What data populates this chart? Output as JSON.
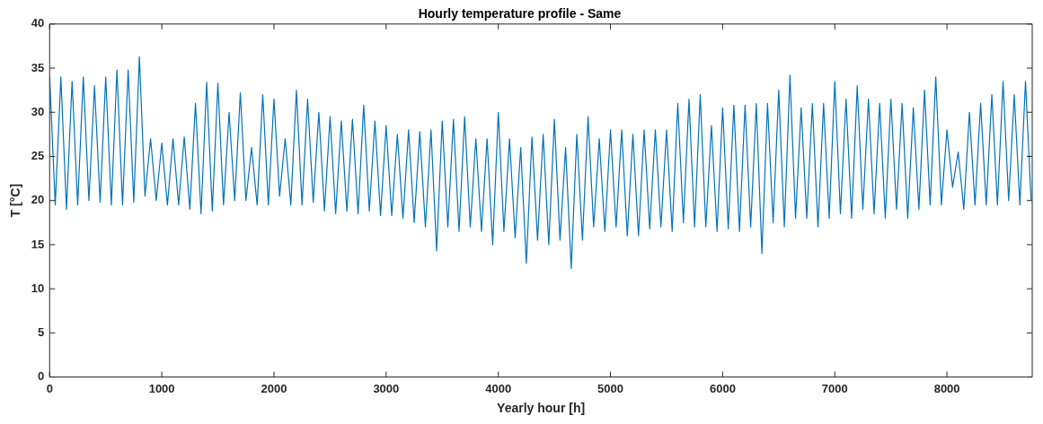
{
  "chart_data": {
    "type": "line",
    "title": "Hourly temperature profile - Same",
    "xlabel": "Yearly hour [h]",
    "ylabel": "T [°C]",
    "x": [
      0,
      50,
      100,
      150,
      200,
      250,
      300,
      350,
      400,
      450,
      500,
      550,
      600,
      650,
      700,
      750,
      800,
      850,
      900,
      950,
      1000,
      1050,
      1100,
      1150,
      1200,
      1250,
      1300,
      1350,
      1400,
      1450,
      1500,
      1550,
      1600,
      1650,
      1700,
      1750,
      1800,
      1850,
      1900,
      1950,
      2000,
      2050,
      2100,
      2150,
      2200,
      2250,
      2300,
      2350,
      2400,
      2450,
      2500,
      2550,
      2600,
      2650,
      2700,
      2750,
      2800,
      2850,
      2900,
      2950,
      3000,
      3050,
      3100,
      3150,
      3200,
      3250,
      3300,
      3350,
      3400,
      3450,
      3500,
      3550,
      3600,
      3650,
      3700,
      3750,
      3800,
      3850,
      3900,
      3950,
      4000,
      4050,
      4100,
      4150,
      4200,
      4250,
      4300,
      4350,
      4400,
      4450,
      4500,
      4550,
      4600,
      4650,
      4700,
      4750,
      4800,
      4850,
      4900,
      4950,
      5000,
      5050,
      5100,
      5150,
      5200,
      5250,
      5300,
      5350,
      5400,
      5450,
      5500,
      5550,
      5600,
      5650,
      5700,
      5750,
      5800,
      5850,
      5900,
      5950,
      6000,
      6050,
      6100,
      6150,
      6200,
      6250,
      6300,
      6350,
      6400,
      6450,
      6500,
      6550,
      6600,
      6650,
      6700,
      6750,
      6800,
      6850,
      6900,
      6950,
      7000,
      7050,
      7100,
      7150,
      7200,
      7250,
      7300,
      7350,
      7400,
      7450,
      7500,
      7550,
      7600,
      7650,
      7700,
      7750,
      7800,
      7850,
      7900,
      7950,
      8000,
      8050,
      8100,
      8150,
      8200,
      8250,
      8300,
      8350,
      8400,
      8450,
      8500,
      8550,
      8600,
      8650,
      8700,
      8750
    ],
    "series": [
      {
        "color": "#0072bd",
        "values": [
          34,
          19.5,
          34,
          19,
          33.5,
          19.5,
          34,
          20,
          33,
          19.8,
          34,
          19.5,
          34.8,
          19.5,
          34.8,
          19.8,
          36.3,
          20.5,
          27,
          20,
          26.5,
          19.5,
          27,
          19.5,
          27.2,
          19,
          31,
          18.5,
          33.4,
          18.8,
          33.3,
          19.5,
          30,
          20,
          32.2,
          20,
          26,
          19.5,
          32,
          19.5,
          31.5,
          20.5,
          27,
          19.5,
          32.5,
          19.5,
          31.5,
          19.8,
          30,
          18.8,
          29.5,
          18.5,
          29,
          18.8,
          29.2,
          18.5,
          30.8,
          18.8,
          29,
          18.3,
          28.5,
          18.3,
          27.5,
          18,
          28,
          17.5,
          27.8,
          17,
          28,
          14.3,
          29,
          17,
          29.2,
          16.5,
          29.5,
          17,
          27,
          16.5,
          27,
          15,
          30,
          16.5,
          27,
          15.8,
          26,
          12.9,
          27.2,
          15.5,
          27.5,
          15,
          29.2,
          15.5,
          26,
          12.3,
          27.5,
          15.5,
          29.5,
          17,
          27,
          16.5,
          28,
          17,
          28,
          16,
          27.5,
          16,
          28,
          16.8,
          28,
          17,
          28,
          16.5,
          31,
          17.5,
          31.5,
          17,
          32,
          17,
          28.5,
          16.5,
          30.5,
          16.8,
          30.8,
          16.5,
          30.8,
          17,
          31,
          14,
          31,
          17.5,
          32.5,
          17,
          34.2,
          18,
          30.5,
          18,
          31,
          17,
          31,
          18,
          33.5,
          18.5,
          31.5,
          18,
          33,
          19,
          31.5,
          18.5,
          31,
          18,
          31.5,
          19,
          31,
          18,
          30.5,
          19,
          32.5,
          19.5,
          34,
          19.5,
          28,
          21.5,
          25.5,
          19,
          30,
          19.5,
          31,
          19.5,
          32,
          19.5,
          33.5,
          20,
          32,
          19.5,
          33.5,
          20
        ]
      }
    ],
    "xlim": [
      0,
      8760
    ],
    "ylim": [
      0,
      40
    ],
    "xticks": [
      0,
      1000,
      2000,
      3000,
      4000,
      5000,
      6000,
      7000,
      8000
    ],
    "yticks": [
      0,
      5,
      10,
      15,
      20,
      25,
      30,
      35,
      40
    ]
  }
}
